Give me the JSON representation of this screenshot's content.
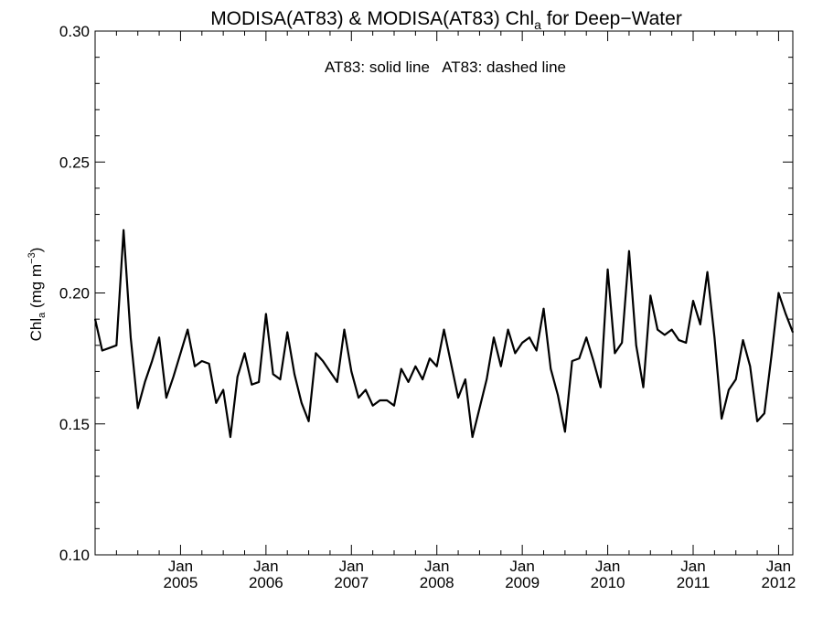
{
  "chart_data": {
    "type": "line",
    "title": {
      "main": "MODISA(AT83) & MODISA(AT83)  Chl",
      "sub": "a",
      "suffix": " for Deep−Water"
    },
    "ylabel": {
      "main": "Chl",
      "sub": "a",
      "mid": " (mg m",
      "sup": "−3",
      "end": ")"
    },
    "annotation": "AT83: solid line   AT83: dashed line",
    "ylim": [
      0.1,
      0.3
    ],
    "y_ticks": [
      0.1,
      0.15,
      0.2,
      0.25,
      0.3
    ],
    "y_tick_labels": [
      "0.10",
      "0.15",
      "0.20",
      "0.25",
      "0.30"
    ],
    "x_tick_labels": [
      {
        "month": "Jan",
        "year": "2005",
        "x": "2005-01"
      },
      {
        "month": "Jan",
        "year": "2006",
        "x": "2006-01"
      },
      {
        "month": "Jan",
        "year": "2007",
        "x": "2007-01"
      },
      {
        "month": "Jan",
        "year": "2008",
        "x": "2008-01"
      },
      {
        "month": "Jan",
        "year": "2009",
        "x": "2009-01"
      },
      {
        "month": "Jan",
        "year": "2010",
        "x": "2010-01"
      },
      {
        "month": "Jan",
        "year": "2011",
        "x": "2011-01"
      },
      {
        "month": "Jan",
        "year": "2012",
        "x": "2012-01"
      }
    ],
    "xlim": [
      "2004-01",
      "2012-03"
    ],
    "series": [
      {
        "style": "solid",
        "color": "#000000",
        "x": [
          "2004-01",
          "2004-02",
          "2004-03",
          "2004-04",
          "2004-05",
          "2004-06",
          "2004-07",
          "2004-08",
          "2004-09",
          "2004-10",
          "2004-11",
          "2004-12",
          "2005-01",
          "2005-02",
          "2005-03",
          "2005-04",
          "2005-05",
          "2005-06",
          "2005-07",
          "2005-08",
          "2005-09",
          "2005-10",
          "2005-11",
          "2005-12",
          "2006-01",
          "2006-02",
          "2006-03",
          "2006-04",
          "2006-05",
          "2006-06",
          "2006-07",
          "2006-08",
          "2006-09",
          "2006-10",
          "2006-11",
          "2006-12",
          "2007-01",
          "2007-02",
          "2007-03",
          "2007-04",
          "2007-05",
          "2007-06",
          "2007-07",
          "2007-08",
          "2007-09",
          "2007-10",
          "2007-11",
          "2007-12",
          "2008-01",
          "2008-02",
          "2008-03",
          "2008-04",
          "2008-05",
          "2008-06",
          "2008-07",
          "2008-08",
          "2008-09",
          "2008-10",
          "2008-11",
          "2008-12",
          "2009-01",
          "2009-02",
          "2009-03",
          "2009-04",
          "2009-05",
          "2009-06",
          "2009-07",
          "2009-08",
          "2009-09",
          "2009-10",
          "2009-11",
          "2009-12",
          "2010-01",
          "2010-02",
          "2010-03",
          "2010-04",
          "2010-05",
          "2010-06",
          "2010-07",
          "2010-08",
          "2010-09",
          "2010-10",
          "2010-11",
          "2010-12",
          "2011-01",
          "2011-02",
          "2011-03",
          "2011-04",
          "2011-05",
          "2011-06",
          "2011-07",
          "2011-08",
          "2011-09",
          "2011-10",
          "2011-11",
          "2011-12",
          "2012-01",
          "2012-02",
          "2012-03"
        ],
        "y": [
          0.19,
          0.178,
          0.179,
          0.18,
          0.224,
          0.183,
          0.156,
          0.166,
          0.174,
          0.183,
          0.16,
          0.168,
          0.177,
          0.186,
          0.172,
          0.174,
          0.173,
          0.158,
          0.163,
          0.145,
          0.168,
          0.177,
          0.165,
          0.166,
          0.192,
          0.169,
          0.167,
          0.185,
          0.169,
          0.158,
          0.151,
          0.177,
          0.174,
          0.17,
          0.166,
          0.186,
          0.17,
          0.16,
          0.163,
          0.157,
          0.159,
          0.159,
          0.157,
          0.171,
          0.166,
          0.172,
          0.167,
          0.175,
          0.172,
          0.186,
          0.173,
          0.16,
          0.167,
          0.145,
          0.156,
          0.167,
          0.183,
          0.172,
          0.186,
          0.177,
          0.181,
          0.183,
          0.178,
          0.194,
          0.171,
          0.161,
          0.147,
          0.174,
          0.175,
          0.183,
          0.174,
          0.164,
          0.209,
          0.177,
          0.181,
          0.216,
          0.18,
          0.164,
          0.199,
          0.186,
          0.184,
          0.186,
          0.182,
          0.181,
          0.197,
          0.188,
          0.208,
          0.183,
          0.152,
          0.163,
          0.167,
          0.182,
          0.172,
          0.151,
          0.154,
          0.176,
          0.2,
          0.192,
          0.185
        ]
      }
    ]
  }
}
